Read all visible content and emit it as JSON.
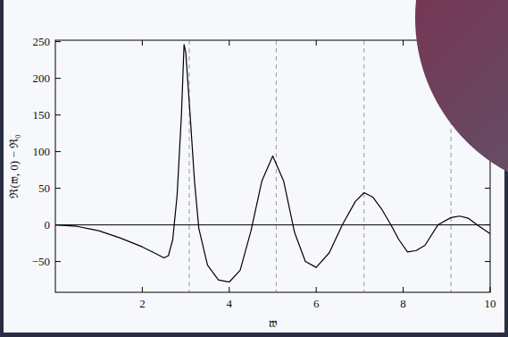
{
  "chart_data": {
    "type": "line",
    "x_label": "𝔴",
    "y_label": "ℜ(𝔴, 0) − ℜ₀",
    "x": [
      0,
      0.5,
      1.0,
      1.5,
      2.0,
      2.3,
      2.5,
      2.6,
      2.7,
      2.8,
      2.9,
      2.96,
      3.0,
      3.1,
      3.2,
      3.3,
      3.5,
      3.75,
      4.0,
      4.25,
      4.5,
      4.75,
      5.0,
      5.25,
      5.5,
      5.75,
      6.0,
      6.3,
      6.6,
      6.9,
      7.1,
      7.3,
      7.5,
      7.7,
      7.9,
      8.1,
      8.3,
      8.5,
      8.8,
      9.1,
      9.3,
      9.5,
      9.7,
      10
    ],
    "values": [
      0,
      -2,
      -8,
      -18,
      -30,
      -39,
      -45,
      -42,
      -20,
      40,
      150,
      246,
      235,
      150,
      60,
      -5,
      -55,
      -75,
      -78,
      -62,
      -8,
      60,
      94,
      60,
      -10,
      -50,
      -58,
      -38,
      0,
      32,
      44,
      38,
      22,
      2,
      -20,
      -37,
      -35,
      -28,
      0,
      10,
      12,
      9,
      0,
      -12
    ],
    "color": "#000000",
    "xlim": [
      0,
      10
    ],
    "ylim": [
      -92,
      252
    ],
    "xticks": [
      2,
      4,
      6,
      8,
      10
    ],
    "yticks": [
      {
        "value": -50,
        "label": "−50"
      },
      0,
      50,
      100,
      150,
      200,
      250
    ],
    "hlines": [
      0
    ],
    "vlines": [
      3.08,
      5.08,
      7.1,
      9.1
    ]
  }
}
